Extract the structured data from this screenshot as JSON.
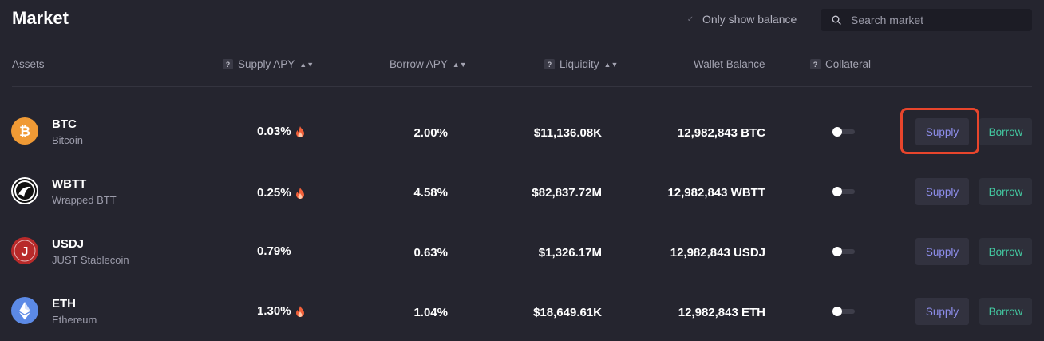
{
  "page": {
    "title": "Market"
  },
  "filter": {
    "only_show_balance_label": "Only show balance",
    "checked": true
  },
  "search": {
    "placeholder": "Search market",
    "value": ""
  },
  "columns": {
    "assets": "Assets",
    "supply_apy": "Supply APY",
    "borrow_apy": "Borrow APY",
    "liquidity": "Liquidity",
    "wallet_balance": "Wallet Balance",
    "collateral": "Collateral",
    "help_glyph": "?"
  },
  "assets": [
    {
      "symbol": "BTC",
      "name": "Bitcoin",
      "supply_apy": "0.03%",
      "supply_flame": true,
      "borrow_apy": "2.00%",
      "liquidity": "$11,136.08K",
      "wallet_balance": "12,982,843 BTC",
      "collateral": false,
      "supply_label": "Supply",
      "borrow_label": "Borrow",
      "icon": "bitcoin-icon"
    },
    {
      "symbol": "WBTT",
      "name": "Wrapped BTT",
      "supply_apy": "0.25%",
      "supply_flame": true,
      "borrow_apy": "4.58%",
      "liquidity": "$82,837.72M",
      "wallet_balance": "12,982,843 WBTT",
      "collateral": false,
      "supply_label": "Supply",
      "borrow_label": "Borrow",
      "icon": "bittorrent-icon"
    },
    {
      "symbol": "USDJ",
      "name": "JUST Stablecoin",
      "supply_apy": "0.79%",
      "supply_flame": false,
      "borrow_apy": "0.63%",
      "liquidity": "$1,326.17M",
      "wallet_balance": "12,982,843 USDJ",
      "collateral": false,
      "supply_label": "Supply",
      "borrow_label": "Borrow",
      "icon": "usdj-icon"
    },
    {
      "symbol": "ETH",
      "name": "Ethereum",
      "supply_apy": "1.30%",
      "supply_flame": true,
      "borrow_apy": "1.04%",
      "liquidity": "$18,649.61K",
      "wallet_balance": "12,982,843 ETH",
      "collateral": false,
      "supply_label": "Supply",
      "borrow_label": "Borrow",
      "icon": "ethereum-icon"
    }
  ],
  "colors": {
    "background": "#25252f",
    "supply_text": "#8e8eec",
    "borrow_text": "#43c7a0",
    "highlight": "#e8452c",
    "btc": "#f09a35",
    "usdj": "#b82a2a",
    "eth": "#5c8ae6"
  }
}
